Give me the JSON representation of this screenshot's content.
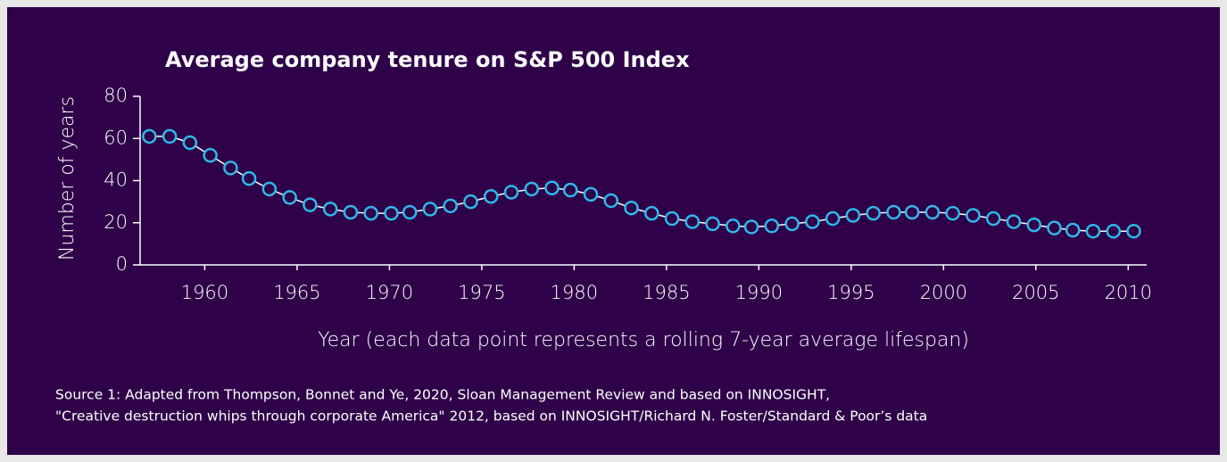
{
  "chart_data": {
    "type": "line",
    "title": "Average company tenure on S&P 500 Index",
    "ylabel": "Number of years",
    "xlabel": "Year (each data point represents a rolling 7-year average lifespan)",
    "source": [
      "Source 1: Adapted from Thompson, Bonnet and Ye, 2020, Sloan Management Review  and based on INNOSIGHT,",
      "\"Creative destruction whips through corporate America\" 2012, based on INNOSIGHT/Richard N. Foster/Standard & Poor’s data"
    ],
    "x": [
      1957.0,
      1958.1,
      1959.2,
      1960.3,
      1961.4,
      1962.4,
      1963.5,
      1964.6,
      1965.7,
      1966.8,
      1967.9,
      1969.0,
      1970.1,
      1971.1,
      1972.2,
      1973.3,
      1974.4,
      1975.5,
      1976.6,
      1977.7,
      1978.8,
      1979.8,
      1980.9,
      1982.0,
      1983.1,
      1984.2,
      1985.3,
      1986.4,
      1987.5,
      1988.6,
      1989.6,
      1990.7,
      1991.8,
      1992.9,
      1994.0,
      1995.1,
      1996.2,
      1997.3,
      1998.3,
      1999.4,
      2000.5,
      2001.6,
      2002.7,
      2003.8,
      2004.9,
      2006.0,
      2007.0,
      2008.1,
      2009.2,
      2010.3
    ],
    "series": [
      {
        "color": "#2fb8ea",
        "line_color": "#ffffff",
        "values": [
          61,
          61,
          58,
          52,
          46,
          41,
          36,
          32,
          28.5,
          26.5,
          25,
          24.5,
          24.5,
          25,
          26.5,
          28,
          30,
          32.5,
          34.5,
          36,
          36.5,
          35.5,
          33.5,
          30.5,
          27,
          24.5,
          22,
          20.5,
          19.5,
          18.5,
          18,
          18.5,
          19.5,
          20.5,
          22,
          23.5,
          24.5,
          25,
          25,
          25,
          24.5,
          23.5,
          22,
          20.5,
          19,
          17.5,
          16.5,
          16,
          16,
          16
        ]
      }
    ],
    "xlim": [
      1956.5,
      2011.0
    ],
    "ylim": [
      0,
      80
    ],
    "xticks": [
      1960,
      1965,
      1970,
      1975,
      1980,
      1985,
      1990,
      1995,
      2000,
      2005,
      2010
    ],
    "yticks": [
      0,
      20,
      40,
      60,
      80
    ]
  }
}
